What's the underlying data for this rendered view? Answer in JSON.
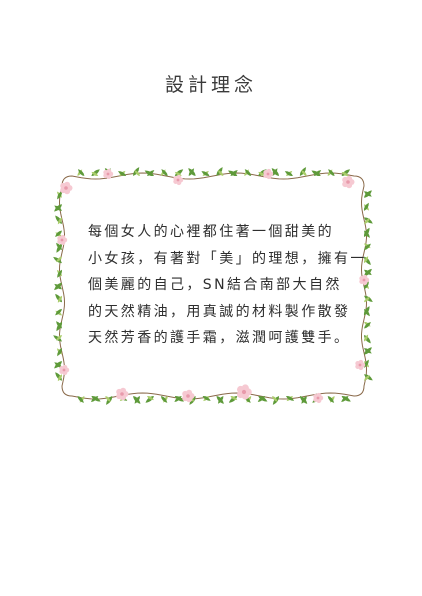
{
  "page": {
    "title": "設計理念",
    "body_lines": [
      "每個女人的心裡都住著一個甜美的",
      "小女孩，有著對「美」的理想，擁有一",
      "個美麗的自己，SN結合南部大自然",
      "的天然精油，用真誠的材料製作散發",
      "天然芳香的護手霜，滋潤呵護雙手。"
    ]
  },
  "colors": {
    "text": "#2e2e2e",
    "title": "#3a3a3a",
    "leaf_dark": "#5e9a3a",
    "leaf_light": "#a9cc6a",
    "vine": "#8a6a4a",
    "flower": "#f6c9d2",
    "flower_center": "#e89aab"
  }
}
